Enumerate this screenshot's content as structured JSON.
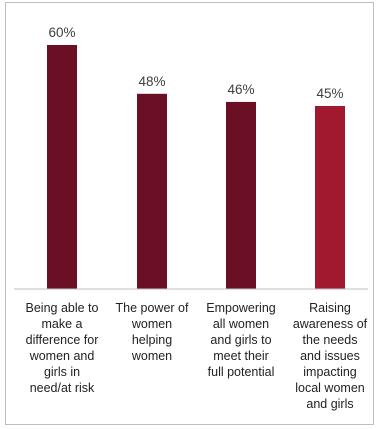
{
  "chart_data": {
    "type": "bar",
    "title": "",
    "xlabel": "",
    "ylabel": "",
    "ylim": [
      0,
      60
    ],
    "grid": false,
    "legend": "none",
    "categories": [
      "Being able to\nmake a\ndifference for\nwomen and\ngirls in\nneed/at risk",
      "The power of\nwomen\nhelping\nwomen",
      "Empowering\nall women\nand girls to\nmeet their\nfull potential",
      "Raising\nawareness of\nthe needs\nand issues\nimpacting\nlocal women\nand girls"
    ],
    "values": [
      60,
      48,
      46,
      45
    ],
    "value_labels": [
      "60%",
      "48%",
      "46%",
      "45%"
    ],
    "bar_colors": [
      "#6b0f24",
      "#6b0f24",
      "#6b0f24",
      "#a0192f"
    ]
  }
}
